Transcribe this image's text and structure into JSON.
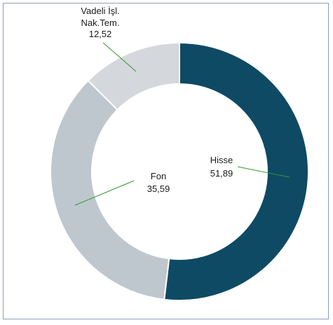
{
  "chart_data": {
    "type": "pie",
    "title": "",
    "slices": [
      {
        "label": "Hisse",
        "value": "51,89",
        "number": 51.89,
        "color": "#0e4a64"
      },
      {
        "label": "Fon",
        "value": "35,59",
        "number": 35.59,
        "color": "#bfc7ce"
      },
      {
        "label": "Vadeli İşl. Nak.Tem.",
        "label_lines": [
          "Vadeli İşl.",
          "Nak.Tem."
        ],
        "value": "12,52",
        "number": 12.52,
        "color": "#d4d8dc"
      }
    ],
    "legend": "none",
    "donut": true
  }
}
